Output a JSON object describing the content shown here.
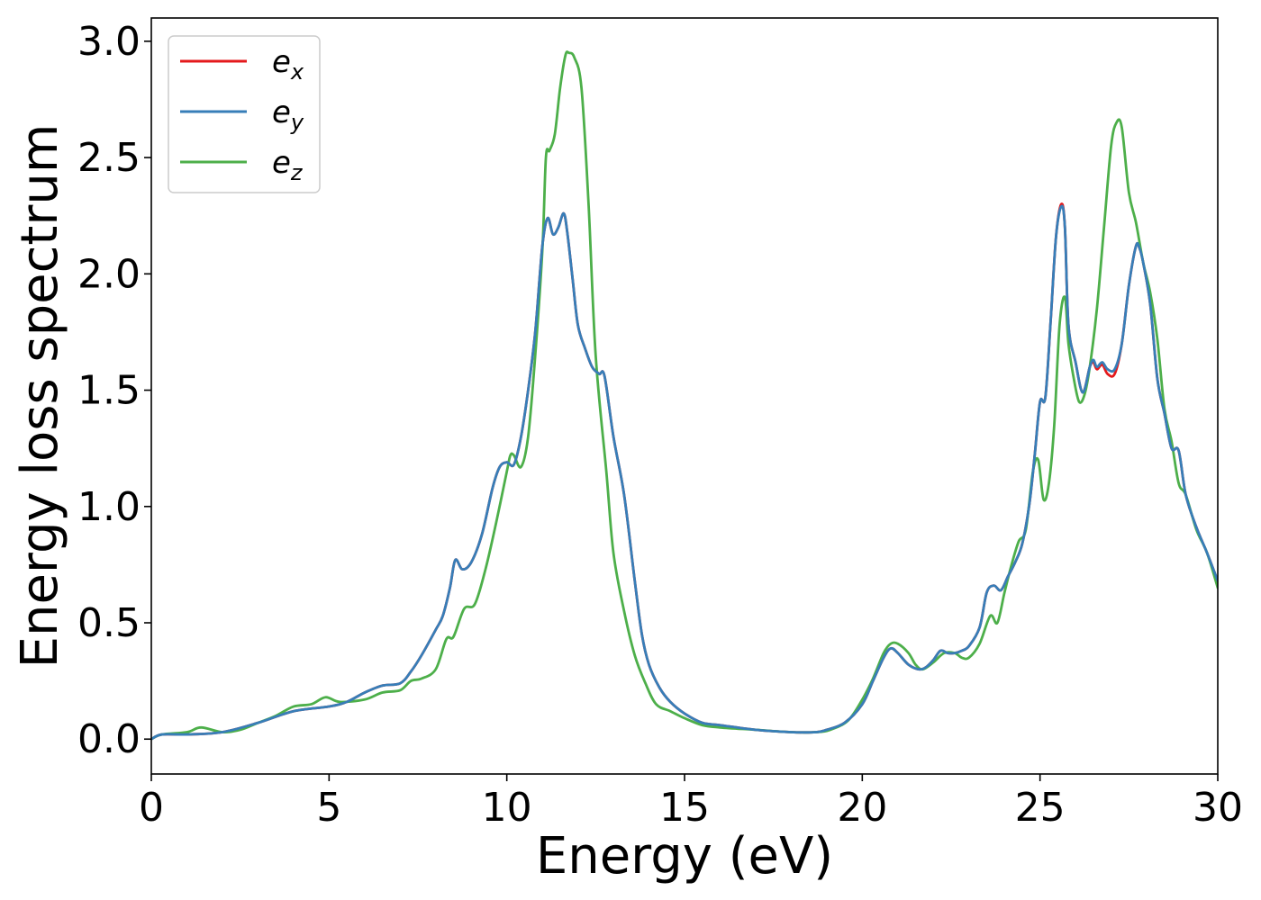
{
  "chart_data": {
    "type": "line",
    "title": "",
    "xlabel": "Energy (eV)",
    "ylabel": "Energy loss spectrum",
    "xlim": [
      0,
      30
    ],
    "ylim": [
      -0.15,
      3.1
    ],
    "xticks": [
      "0",
      "5",
      "10",
      "15",
      "20",
      "25",
      "30"
    ],
    "yticks": [
      "0.0",
      "0.5",
      "1.0",
      "1.5",
      "2.0",
      "2.5",
      "3.0"
    ],
    "grid": false,
    "legend_position": "top-left",
    "series": [
      {
        "name": "e_x",
        "label_base": "e",
        "label_sub": "x",
        "color": "#e41a1c",
        "x": [
          0,
          0.3,
          1,
          2,
          3,
          4,
          5,
          5.5,
          6,
          6.5,
          7,
          7.3,
          7.6,
          8,
          8.2,
          8.4,
          8.55,
          8.75,
          9,
          9.3,
          9.6,
          9.8,
          10,
          10.2,
          10.4,
          10.6,
          10.8,
          11,
          11.15,
          11.3,
          11.45,
          11.6,
          11.7,
          11.85,
          12,
          12.2,
          12.4,
          12.6,
          12.75,
          13,
          13.3,
          13.6,
          13.8,
          14,
          14.3,
          14.6,
          15,
          15.5,
          16,
          17,
          18,
          18.7,
          19,
          19.5,
          20,
          20.3,
          20.6,
          20.8,
          21,
          21.3,
          21.6,
          21.8,
          22,
          22.2,
          22.4,
          22.6,
          22.8,
          23,
          23.3,
          23.5,
          23.7,
          23.9,
          24.1,
          24.3,
          24.5,
          24.7,
          24.85,
          25,
          25.15,
          25.3,
          25.45,
          25.6,
          25.7,
          25.8,
          26,
          26.2,
          26.4,
          26.5,
          26.6,
          26.75,
          26.9,
          27.1,
          27.3,
          27.5,
          27.7,
          27.8,
          27.9,
          28.1,
          28.3,
          28.5,
          28.7,
          28.9,
          29.1,
          29.4,
          29.7,
          30
        ],
        "y": [
          0,
          0.02,
          0.02,
          0.03,
          0.07,
          0.12,
          0.14,
          0.16,
          0.2,
          0.23,
          0.24,
          0.29,
          0.36,
          0.47,
          0.53,
          0.65,
          0.77,
          0.73,
          0.76,
          0.88,
          1.08,
          1.17,
          1.19,
          1.18,
          1.3,
          1.5,
          1.75,
          2.12,
          2.24,
          2.17,
          2.2,
          2.26,
          2.18,
          1.98,
          1.78,
          1.68,
          1.6,
          1.57,
          1.56,
          1.3,
          1.05,
          0.68,
          0.45,
          0.32,
          0.22,
          0.16,
          0.11,
          0.07,
          0.06,
          0.04,
          0.03,
          0.03,
          0.04,
          0.07,
          0.15,
          0.25,
          0.35,
          0.39,
          0.37,
          0.32,
          0.3,
          0.31,
          0.34,
          0.38,
          0.37,
          0.37,
          0.38,
          0.4,
          0.48,
          0.63,
          0.66,
          0.64,
          0.7,
          0.76,
          0.84,
          1.01,
          1.22,
          1.45,
          1.47,
          1.8,
          2.16,
          2.3,
          2.2,
          1.78,
          1.62,
          1.49,
          1.6,
          1.62,
          1.59,
          1.61,
          1.57,
          1.57,
          1.7,
          1.95,
          2.12,
          2.11,
          2.05,
          1.87,
          1.55,
          1.4,
          1.25,
          1.24,
          1.05,
          0.91,
          0.8,
          0.68
        ]
      },
      {
        "name": "e_y",
        "label_base": "e",
        "label_sub": "y",
        "color": "#377eb8",
        "x": [
          0,
          0.3,
          1,
          2,
          3,
          4,
          5,
          5.5,
          6,
          6.5,
          7,
          7.3,
          7.6,
          8,
          8.2,
          8.4,
          8.55,
          8.75,
          9,
          9.3,
          9.6,
          9.8,
          10,
          10.2,
          10.4,
          10.6,
          10.8,
          11,
          11.15,
          11.3,
          11.45,
          11.6,
          11.7,
          11.85,
          12,
          12.2,
          12.4,
          12.6,
          12.75,
          13,
          13.3,
          13.6,
          13.8,
          14,
          14.3,
          14.6,
          15,
          15.5,
          16,
          17,
          18,
          18.7,
          19,
          19.5,
          20,
          20.3,
          20.6,
          20.8,
          21,
          21.3,
          21.6,
          21.8,
          22,
          22.2,
          22.4,
          22.6,
          22.8,
          23,
          23.3,
          23.5,
          23.7,
          23.9,
          24.1,
          24.3,
          24.5,
          24.7,
          24.85,
          25,
          25.15,
          25.3,
          25.45,
          25.6,
          25.7,
          25.8,
          26,
          26.2,
          26.4,
          26.5,
          26.6,
          26.75,
          26.9,
          27.1,
          27.3,
          27.5,
          27.7,
          27.8,
          27.9,
          28.1,
          28.3,
          28.5,
          28.7,
          28.9,
          29.1,
          29.4,
          29.7,
          30
        ],
        "y": [
          0,
          0.02,
          0.02,
          0.03,
          0.07,
          0.12,
          0.14,
          0.16,
          0.2,
          0.23,
          0.24,
          0.29,
          0.36,
          0.47,
          0.53,
          0.65,
          0.77,
          0.73,
          0.76,
          0.88,
          1.08,
          1.17,
          1.19,
          1.18,
          1.3,
          1.5,
          1.75,
          2.12,
          2.24,
          2.17,
          2.2,
          2.26,
          2.18,
          1.98,
          1.78,
          1.68,
          1.6,
          1.57,
          1.56,
          1.3,
          1.05,
          0.68,
          0.45,
          0.32,
          0.22,
          0.16,
          0.11,
          0.07,
          0.06,
          0.04,
          0.03,
          0.03,
          0.04,
          0.07,
          0.15,
          0.25,
          0.35,
          0.39,
          0.37,
          0.32,
          0.3,
          0.31,
          0.34,
          0.38,
          0.37,
          0.37,
          0.38,
          0.4,
          0.48,
          0.63,
          0.66,
          0.64,
          0.7,
          0.76,
          0.84,
          1.01,
          1.22,
          1.45,
          1.47,
          1.8,
          2.16,
          2.29,
          2.2,
          1.78,
          1.62,
          1.49,
          1.6,
          1.63,
          1.6,
          1.62,
          1.59,
          1.59,
          1.7,
          1.95,
          2.12,
          2.11,
          2.05,
          1.87,
          1.55,
          1.4,
          1.25,
          1.24,
          1.05,
          0.91,
          0.8,
          0.68
        ]
      },
      {
        "name": "e_z",
        "label_base": "e",
        "label_sub": "z",
        "color": "#4daf4a",
        "x": [
          0,
          0.3,
          1,
          1.4,
          2,
          2.5,
          3,
          3.5,
          4,
          4.5,
          4.9,
          5.3,
          6,
          6.5,
          7,
          7.3,
          7.6,
          8,
          8.3,
          8.5,
          8.8,
          9.1,
          9.4,
          9.7,
          10,
          10.1,
          10.2,
          10.4,
          10.6,
          10.8,
          11,
          11.1,
          11.2,
          11.35,
          11.5,
          11.65,
          11.75,
          11.9,
          12.1,
          12.3,
          12.5,
          12.8,
          13,
          13.3,
          13.6,
          13.9,
          14.2,
          14.6,
          15,
          15.5,
          16,
          17,
          18,
          18.7,
          19.1,
          19.6,
          20,
          20.3,
          20.6,
          20.8,
          21,
          21.3,
          21.5,
          21.7,
          22,
          22.3,
          22.6,
          22.8,
          23,
          23.3,
          23.6,
          23.8,
          24,
          24.2,
          24.4,
          24.6,
          24.8,
          24.95,
          25.1,
          25.25,
          25.4,
          25.55,
          25.7,
          25.8,
          25.95,
          26.1,
          26.25,
          26.4,
          26.6,
          26.8,
          27,
          27.15,
          27.3,
          27.5,
          27.7,
          27.9,
          28.1,
          28.3,
          28.5,
          28.7,
          28.9,
          29.1,
          29.4,
          29.7,
          30
        ],
        "y": [
          0,
          0.02,
          0.03,
          0.05,
          0.03,
          0.04,
          0.07,
          0.1,
          0.14,
          0.15,
          0.18,
          0.16,
          0.17,
          0.2,
          0.21,
          0.25,
          0.26,
          0.3,
          0.43,
          0.44,
          0.56,
          0.58,
          0.73,
          0.93,
          1.15,
          1.22,
          1.22,
          1.17,
          1.3,
          1.65,
          2.1,
          2.5,
          2.53,
          2.6,
          2.8,
          2.94,
          2.95,
          2.93,
          2.8,
          2.3,
          1.65,
          1.15,
          0.8,
          0.55,
          0.36,
          0.24,
          0.15,
          0.12,
          0.09,
          0.06,
          0.05,
          0.04,
          0.03,
          0.03,
          0.04,
          0.08,
          0.17,
          0.26,
          0.37,
          0.41,
          0.41,
          0.37,
          0.32,
          0.3,
          0.33,
          0.37,
          0.37,
          0.35,
          0.35,
          0.41,
          0.53,
          0.5,
          0.63,
          0.75,
          0.85,
          0.9,
          1.15,
          1.2,
          1.03,
          1.1,
          1.35,
          1.78,
          1.9,
          1.7,
          1.55,
          1.45,
          1.48,
          1.6,
          1.85,
          2.2,
          2.55,
          2.65,
          2.63,
          2.35,
          2.22,
          2.05,
          1.92,
          1.72,
          1.42,
          1.28,
          1.1,
          1.05,
          0.9,
          0.8,
          0.65
        ]
      }
    ]
  }
}
